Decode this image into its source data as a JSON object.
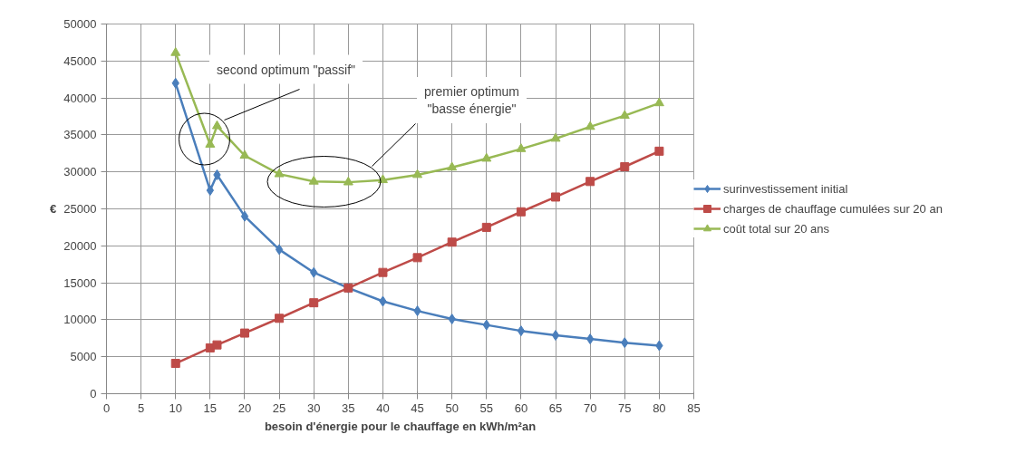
{
  "chart_data": {
    "type": "line",
    "xlabel": "besoin d'énergie pour le chauffage en kWh/m²an",
    "ylabel": "€",
    "x": [
      10,
      15,
      16,
      20,
      25,
      30,
      35,
      40,
      45,
      50,
      55,
      60,
      65,
      70,
      75,
      80
    ],
    "series": [
      {
        "name": "surinvestissement initial",
        "color": "#4a7ebb",
        "marker": "diamond",
        "values": [
          42000,
          27500,
          29600,
          24000,
          19500,
          16400,
          14300,
          12500,
          11200,
          10100,
          9300,
          8500,
          7900,
          7400,
          6900,
          6500
        ]
      },
      {
        "name": "charges de chauffage cumulées sur 20 an",
        "color": "#be4b48",
        "marker": "square",
        "values": [
          4100,
          6200,
          6600,
          8200,
          10200,
          12300,
          14300,
          16400,
          18400,
          20500,
          22500,
          24600,
          26600,
          28700,
          30700,
          32800
        ]
      },
      {
        "name": "coût total sur 20 ans",
        "color": "#98b954",
        "marker": "triangle",
        "values": [
          46100,
          33700,
          36200,
          32200,
          29700,
          28700,
          28600,
          28900,
          29600,
          30600,
          31800,
          33100,
          34500,
          36100,
          37600,
          39300
        ]
      }
    ],
    "annotations": [
      "second optimum \"passif\"",
      "premier optimum\n\"basse énergie\""
    ],
    "xlim": [
      0,
      85
    ],
    "xticks": [
      0,
      5,
      10,
      15,
      20,
      25,
      30,
      35,
      40,
      45,
      50,
      55,
      60,
      65,
      70,
      75,
      80,
      85
    ],
    "ylim": [
      0,
      50000
    ],
    "yticks": [
      0,
      5000,
      10000,
      15000,
      20000,
      25000,
      30000,
      35000,
      40000,
      45000,
      50000
    ],
    "grid": true,
    "legend": "right",
    "line_style": "solid"
  }
}
